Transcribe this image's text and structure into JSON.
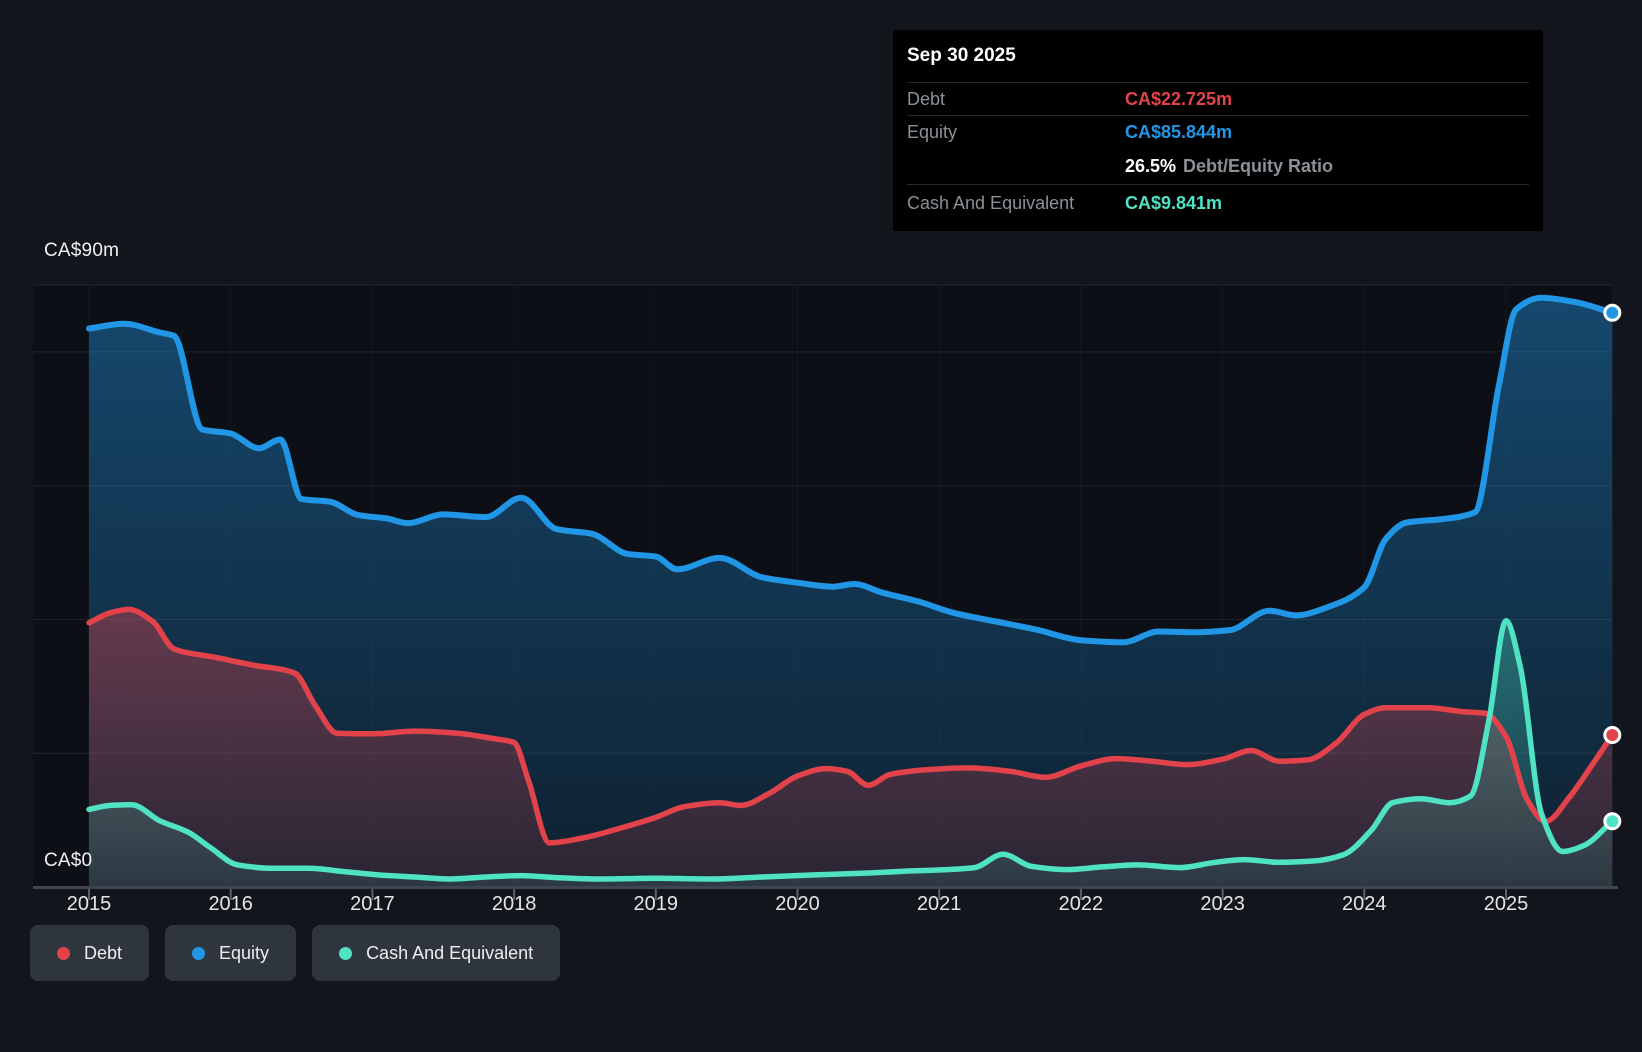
{
  "page": {
    "background": "#12161c",
    "plot_background": "#0c1016"
  },
  "tooltip": {
    "date": "Sep 30 2025",
    "debt_label": "Debt",
    "debt_value": "CA$22.725m",
    "equity_label": "Equity",
    "equity_value": "CA$85.844m",
    "ratio_value": "26.5%",
    "ratio_label": "Debt/Equity Ratio",
    "cash_label": "Cash And Equivalent",
    "cash_value": "CA$9.841m"
  },
  "axis": {
    "y_max_label": "CA$90m",
    "y_zero_label": "CA$0",
    "x_labels": [
      "2015",
      "2016",
      "2017",
      "2018",
      "2019",
      "2020",
      "2021",
      "2022",
      "2023",
      "2024",
      "2025"
    ]
  },
  "legend": {
    "items": [
      {
        "label": "Debt",
        "color": "#e2434b"
      },
      {
        "label": "Equity",
        "color": "#2296e6"
      },
      {
        "label": "Cash And Equivalent",
        "color": "#4fe3c4"
      }
    ]
  },
  "chart_data": {
    "type": "area",
    "x_unit": "year",
    "x_ticks": [
      2015,
      2016,
      2017,
      2018,
      2019,
      2020,
      2021,
      2022,
      2023,
      2024,
      2025
    ],
    "x_range": [
      2015,
      2025.75
    ],
    "y_axis": {
      "min": 0,
      "max": 90,
      "unit": "CA$ millions",
      "gridline_values": [
        90,
        80,
        60,
        40,
        20
      ],
      "grid": true
    },
    "legend_position": "bottom-left",
    "end_values": {
      "Debt": 22.725,
      "Equity": 85.844,
      "Cash And Equivalent": 9.841,
      "debt_equity_ratio_pct": 26.5
    },
    "series": [
      {
        "name": "Equity",
        "color": "#2296e6",
        "points": [
          [
            2015,
            83.5
          ],
          [
            2015.25,
            84.2
          ],
          [
            2015.5,
            82.9
          ],
          [
            2015.6,
            82.4
          ],
          [
            2015.8,
            68.4
          ],
          [
            2016,
            67.8
          ],
          [
            2016.2,
            65.6
          ],
          [
            2016.35,
            66.9
          ],
          [
            2016.5,
            58
          ],
          [
            2016.7,
            57.6
          ],
          [
            2016.9,
            55.6
          ],
          [
            2017.1,
            55.1
          ],
          [
            2017.25,
            54.4
          ],
          [
            2017.5,
            55.7
          ],
          [
            2017.8,
            55.3
          ],
          [
            2018.05,
            58.2
          ],
          [
            2018.3,
            53.5
          ],
          [
            2018.55,
            52.8
          ],
          [
            2018.8,
            49.8
          ],
          [
            2019,
            49.4
          ],
          [
            2019.15,
            47.5
          ],
          [
            2019.45,
            49.2
          ],
          [
            2019.75,
            46.3
          ],
          [
            2020,
            45.5
          ],
          [
            2020.25,
            44.9
          ],
          [
            2020.4,
            45.3
          ],
          [
            2020.6,
            44
          ],
          [
            2020.85,
            42.7
          ],
          [
            2021.1,
            41
          ],
          [
            2021.4,
            39.7
          ],
          [
            2021.7,
            38.4
          ],
          [
            2022,
            36.9
          ],
          [
            2022.3,
            36.6
          ],
          [
            2022.55,
            38.2
          ],
          [
            2022.8,
            38.1
          ],
          [
            2023.05,
            38.4
          ],
          [
            2023.33,
            41.3
          ],
          [
            2023.52,
            40.6
          ],
          [
            2023.75,
            41.9
          ],
          [
            2024,
            44.8
          ],
          [
            2024.15,
            52
          ],
          [
            2024.3,
            54.5
          ],
          [
            2024.55,
            55
          ],
          [
            2024.78,
            56
          ],
          [
            2024.95,
            75
          ],
          [
            2025.07,
            86.3
          ],
          [
            2025.25,
            88.1
          ],
          [
            2025.5,
            87.4
          ],
          [
            2025.75,
            85.844
          ]
        ]
      },
      {
        "name": "Debt",
        "color": "#e2434b",
        "points": [
          [
            2015,
            39.5
          ],
          [
            2015.15,
            41
          ],
          [
            2015.28,
            41.5
          ],
          [
            2015.45,
            39.7
          ],
          [
            2015.6,
            35.6
          ],
          [
            2015.9,
            34.3
          ],
          [
            2016.15,
            33.2
          ],
          [
            2016.45,
            32
          ],
          [
            2016.6,
            27
          ],
          [
            2016.75,
            23
          ],
          [
            2017,
            22.9
          ],
          [
            2017.3,
            23.3
          ],
          [
            2017.6,
            23
          ],
          [
            2017.85,
            22.2
          ],
          [
            2018,
            21.6
          ],
          [
            2018.1,
            16
          ],
          [
            2018.25,
            6.6
          ],
          [
            2018.5,
            7.4
          ],
          [
            2018.75,
            8.8
          ],
          [
            2019,
            10.4
          ],
          [
            2019.2,
            12
          ],
          [
            2019.45,
            12.6
          ],
          [
            2019.6,
            12.2
          ],
          [
            2019.8,
            14
          ],
          [
            2020,
            16.6
          ],
          [
            2020.2,
            17.7
          ],
          [
            2020.35,
            17.3
          ],
          [
            2020.5,
            15.2
          ],
          [
            2020.65,
            16.8
          ],
          [
            2020.9,
            17.5
          ],
          [
            2021.2,
            17.8
          ],
          [
            2021.5,
            17.3
          ],
          [
            2021.75,
            16.4
          ],
          [
            2022,
            18.1
          ],
          [
            2022.25,
            19.2
          ],
          [
            2022.5,
            18.8
          ],
          [
            2022.75,
            18.3
          ],
          [
            2023,
            19.1
          ],
          [
            2023.2,
            20.4
          ],
          [
            2023.4,
            18.8
          ],
          [
            2023.6,
            19
          ],
          [
            2023.8,
            21.5
          ],
          [
            2024,
            25.8
          ],
          [
            2024.15,
            26.8
          ],
          [
            2024.45,
            26.8
          ],
          [
            2024.7,
            26.2
          ],
          [
            2024.85,
            26
          ],
          [
            2025,
            22.5
          ],
          [
            2025.15,
            13
          ],
          [
            2025.28,
            9.8
          ],
          [
            2025.45,
            13.5
          ],
          [
            2025.6,
            18
          ],
          [
            2025.75,
            22.725
          ]
        ]
      },
      {
        "name": "Cash And Equivalent",
        "color": "#4fe3c4",
        "points": [
          [
            2015,
            11.6
          ],
          [
            2015.15,
            12.2
          ],
          [
            2015.3,
            12.3
          ],
          [
            2015.5,
            9.9
          ],
          [
            2015.7,
            8.2
          ],
          [
            2015.85,
            6
          ],
          [
            2016.05,
            3.3
          ],
          [
            2016.3,
            2.8
          ],
          [
            2016.55,
            2.8
          ],
          [
            2016.8,
            2.3
          ],
          [
            2017.05,
            1.8
          ],
          [
            2017.3,
            1.5
          ],
          [
            2017.55,
            1.2
          ],
          [
            2017.8,
            1.5
          ],
          [
            2018.05,
            1.7
          ],
          [
            2018.3,
            1.4
          ],
          [
            2018.6,
            1.2
          ],
          [
            2019,
            1.3
          ],
          [
            2019.4,
            1.2
          ],
          [
            2019.75,
            1.5
          ],
          [
            2020.1,
            1.8
          ],
          [
            2020.5,
            2.1
          ],
          [
            2020.8,
            2.4
          ],
          [
            2021.05,
            2.6
          ],
          [
            2021.25,
            2.9
          ],
          [
            2021.45,
            4.9
          ],
          [
            2021.65,
            3.1
          ],
          [
            2021.9,
            2.6
          ],
          [
            2022.15,
            3
          ],
          [
            2022.4,
            3.3
          ],
          [
            2022.7,
            2.9
          ],
          [
            2022.95,
            3.7
          ],
          [
            2023.15,
            4.1
          ],
          [
            2023.4,
            3.7
          ],
          [
            2023.65,
            3.9
          ],
          [
            2023.85,
            4.8
          ],
          [
            2024.05,
            8.5
          ],
          [
            2024.2,
            12.6
          ],
          [
            2024.4,
            13.2
          ],
          [
            2024.6,
            12.6
          ],
          [
            2024.75,
            13.6
          ],
          [
            2024.88,
            25
          ],
          [
            2025,
            39.8
          ],
          [
            2025.1,
            33
          ],
          [
            2025.25,
            11
          ],
          [
            2025.4,
            5.3
          ],
          [
            2025.55,
            6.2
          ],
          [
            2025.75,
            9.841
          ]
        ]
      }
    ]
  }
}
